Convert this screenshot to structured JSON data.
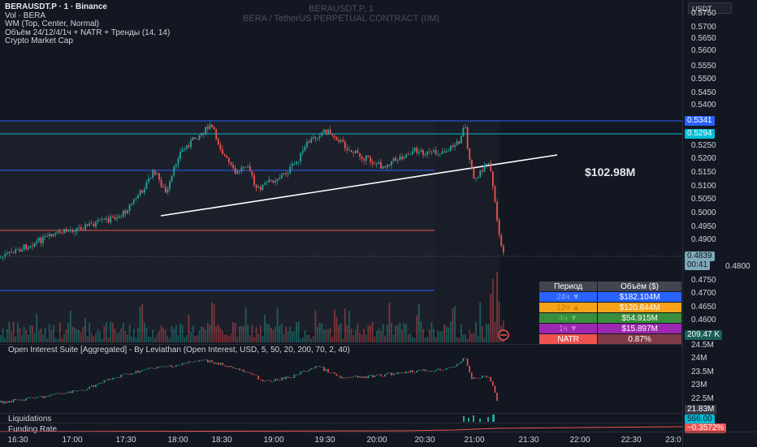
{
  "header": {
    "symbol_line": "BERAUSDT.P · 1 · Binance",
    "vol_line": "Vol · BERA",
    "vp_line": "WM (Top, Center, Normal)",
    "indicator_line": "Объём 24/12/4/1ч + NATR + Тренды (14, 14)",
    "cap_line": "Crypto Market Cap"
  },
  "watermark": {
    "symbol": "BERAUSDT.P, 1",
    "description": "BERA / TetherUS PERPETUAL CONTRACT (0M)"
  },
  "currency": "USDT",
  "price_axis": {
    "ticks": [
      "0.5750",
      "0.5700",
      "0.5650",
      "0.5600",
      "0.5550",
      "0.5500",
      "0.5450",
      "0.5400",
      "0.5250",
      "0.5200",
      "0.5150",
      "0.5100",
      "0.5050",
      "0.5000",
      "0.4950",
      "0.4900",
      "0.4800",
      "0.4750",
      "0.4700",
      "0.4650",
      "0.4600",
      "24.5M",
      "24M",
      "23.5M",
      "23M",
      "22.5M"
    ],
    "tag_top": "0.5341",
    "tag_second": "0.5294",
    "tag_current": "0.4839",
    "tag_countdown": "00:41",
    "tag_volume": "209.47 K",
    "tag_oi": "21.83M",
    "tag_liq": "566.00",
    "tag_funding": "−0.3572%"
  },
  "volume_label": "$102.98M",
  "volume_table": {
    "header_period": "Период",
    "header_volume": "Объём ($)",
    "rows": [
      {
        "period": "24ч ▼",
        "value": "$182.104M",
        "color": "#2962ff"
      },
      {
        "period": "12ч ▲",
        "value": "$120.844M",
        "color": "#f7a21b"
      },
      {
        "period": "4ч ▼",
        "value": "$54.915M",
        "color": "#388e3c"
      },
      {
        "period": "1ч ▼",
        "value": "$15.897M",
        "color": "#9c27b0"
      }
    ],
    "natr_label": "NATR",
    "natr_value": "0.87%"
  },
  "panels": {
    "oi_title": "Open Interest Suite [Aggregated] - By Leviathan (Open Interest, USD, 5, 50, 20, 200, 70, 2, 40)",
    "liq_title": "Liquidations",
    "funding_title": "Funding Rate"
  },
  "time_axis": [
    "16:30",
    "17:00",
    "17:30",
    "18:00",
    "18:30",
    "19:00",
    "19:30",
    "20:00",
    "20:30",
    "21:00",
    "21:30",
    "22:00",
    "22:30",
    "23:0"
  ],
  "colors": {
    "up": "#26a69a",
    "down": "#ef5350",
    "accent": "#2962ff",
    "cyan": "#00bcd4"
  }
}
